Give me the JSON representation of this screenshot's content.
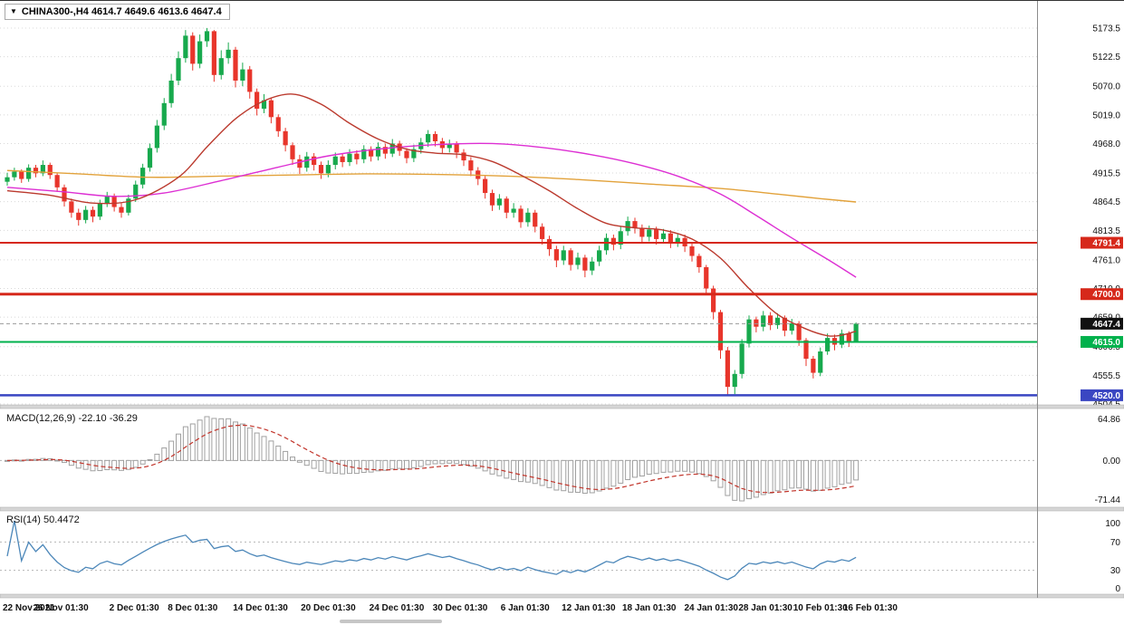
{
  "header": {
    "dropdown_icon": "▼",
    "title": "CHINA300-,H4 4614.7 4649.6 4613.6 4647.4"
  },
  "indicators": {
    "macd_label": "MACD(12,26,9) -22.10 -36.29",
    "rsi_label": "RSI(14) 50.4472"
  },
  "colors": {
    "bull": "#17a94d",
    "bear": "#e8352b",
    "grid": "#d8d8d8",
    "separator": "#d6d6d6",
    "axis_line": "#8c8c8c",
    "macd_bar": "#a0a0a0",
    "macd_signal": "#c2352b",
    "rsi_line": "#4c87b9",
    "current_badge": "#111111"
  },
  "chart_data": [
    {
      "type": "candlestick",
      "symbol": "CHINA300-",
      "timeframe": "H4",
      "ohlc_current": {
        "open": 4614.7,
        "high": 4649.6,
        "low": 4613.6,
        "close": 4647.4
      },
      "current_price": 4647.4,
      "y_ticks": [
        5173.5,
        5122.5,
        5070.0,
        5019.0,
        4968.0,
        4915.5,
        4864.5,
        4813.5,
        4761.0,
        4710.0,
        4659.0,
        4606.5,
        4555.5,
        4504.5
      ],
      "ylim": [
        4504.5,
        5173.5
      ],
      "grid": "horizontal-dotted",
      "x_labels": [
        {
          "text": "22 Nov 2021",
          "index": 0
        },
        {
          "text": "26 Nov 01:30",
          "index": 7.5
        },
        {
          "text": "2 Dec 01:30",
          "index": 17.8
        },
        {
          "text": "8 Dec 01:30",
          "index": 26
        },
        {
          "text": "14 Dec 01:30",
          "index": 35.5
        },
        {
          "text": "20 Dec 01:30",
          "index": 45
        },
        {
          "text": "24 Dec 01:30",
          "index": 54.6
        },
        {
          "text": "30 Dec 01:30",
          "index": 63.5
        },
        {
          "text": "6 Jan 01:30",
          "index": 72.6
        },
        {
          "text": "12 Jan 01:30",
          "index": 81.5
        },
        {
          "text": "18 Jan 01:30",
          "index": 90
        },
        {
          "text": "24 Jan 01:30",
          "index": 98.7
        },
        {
          "text": "28 Jan 01:30",
          "index": 106.3
        },
        {
          "text": "10 Feb 01:30",
          "index": 114
        },
        {
          "text": "16 Feb 01:30",
          "index": 121
        }
      ],
      "hlines": [
        {
          "value": 4791.4,
          "color": "#d6281a",
          "width": 2
        },
        {
          "value": 4700.0,
          "color": "#d6281a",
          "width": 3
        },
        {
          "value": 4615.0,
          "color": "#00b14c",
          "width": 2
        },
        {
          "value": 4520.0,
          "color": "#3a46c2",
          "width": 2.5
        }
      ],
      "moving_averages": [
        {
          "name": "slow-orange",
          "color": "#e2a23b",
          "points": [
            [
              0,
              4920
            ],
            [
              10,
              4914
            ],
            [
              20,
              4908
            ],
            [
              30,
              4910
            ],
            [
              40,
              4912
            ],
            [
              50,
              4914
            ],
            [
              60,
              4913
            ],
            [
              70,
              4910
            ],
            [
              80,
              4904
            ],
            [
              90,
              4896
            ],
            [
              100,
              4888
            ],
            [
              108,
              4878
            ],
            [
              114,
              4870
            ],
            [
              119,
              4864
            ]
          ]
        },
        {
          "name": "medium-magenta",
          "color": "#dd2fd3",
          "points": [
            [
              0,
              4890
            ],
            [
              8,
              4882
            ],
            [
              15,
              4874
            ],
            [
              22,
              4880
            ],
            [
              30,
              4902
            ],
            [
              38,
              4926
            ],
            [
              45,
              4946
            ],
            [
              52,
              4958
            ],
            [
              60,
              4966
            ],
            [
              68,
              4968
            ],
            [
              75,
              4961
            ],
            [
              82,
              4948
            ],
            [
              88,
              4932
            ],
            [
              94,
              4910
            ],
            [
              100,
              4878
            ],
            [
              105,
              4840
            ],
            [
              110,
              4800
            ],
            [
              115,
              4762
            ],
            [
              119,
              4730
            ]
          ]
        },
        {
          "name": "fast-red",
          "color": "#bb3a2e",
          "points": [
            [
              0,
              4884
            ],
            [
              6,
              4876
            ],
            [
              12,
              4862
            ],
            [
              18,
              4868
            ],
            [
              24,
              4908
            ],
            [
              28,
              4962
            ],
            [
              32,
              5012
            ],
            [
              36,
              5044
            ],
            [
              40,
              5056
            ],
            [
              44,
              5038
            ],
            [
              48,
              5004
            ],
            [
              52,
              4976
            ],
            [
              56,
              4958
            ],
            [
              60,
              4951
            ],
            [
              64,
              4948
            ],
            [
              68,
              4936
            ],
            [
              72,
              4912
            ],
            [
              76,
              4884
            ],
            [
              80,
              4852
            ],
            [
              84,
              4826
            ],
            [
              88,
              4818
            ],
            [
              92,
              4814
            ],
            [
              96,
              4798
            ],
            [
              100,
              4764
            ],
            [
              104,
              4710
            ],
            [
              108,
              4664
            ],
            [
              112,
              4638
            ],
            [
              115,
              4626
            ],
            [
              117,
              4627
            ],
            [
              119,
              4634
            ]
          ]
        }
      ],
      "candles": [
        [
          4900,
          4916,
          4893,
          4908
        ],
        [
          4908,
          4925,
          4902,
          4918
        ],
        [
          4918,
          4922,
          4898,
          4905
        ],
        [
          4905,
          4931,
          4900,
          4925
        ],
        [
          4925,
          4930,
          4908,
          4915
        ],
        [
          4915,
          4938,
          4910,
          4930
        ],
        [
          4930,
          4934,
          4905,
          4912
        ],
        [
          4912,
          4916,
          4882,
          4890
        ],
        [
          4890,
          4895,
          4856,
          4865
        ],
        [
          4865,
          4870,
          4836,
          4845
        ],
        [
          4845,
          4852,
          4822,
          4832
        ],
        [
          4832,
          4857,
          4826,
          4850
        ],
        [
          4850,
          4856,
          4828,
          4838
        ],
        [
          4838,
          4868,
          4832,
          4862
        ],
        [
          4862,
          4882,
          4855,
          4875
        ],
        [
          4875,
          4879,
          4847,
          4855
        ],
        [
          4855,
          4862,
          4836,
          4845
        ],
        [
          4845,
          4877,
          4840,
          4870
        ],
        [
          4870,
          4902,
          4864,
          4895
        ],
        [
          4895,
          4932,
          4888,
          4925
        ],
        [
          4925,
          4968,
          4918,
          4960
        ],
        [
          4960,
          5010,
          4952,
          5000
        ],
        [
          5000,
          5049,
          4992,
          5040
        ],
        [
          5040,
          5092,
          5032,
          5080
        ],
        [
          5080,
          5132,
          5072,
          5120
        ],
        [
          5120,
          5170,
          5112,
          5160
        ],
        [
          5160,
          5166,
          5098,
          5110
        ],
        [
          5110,
          5162,
          5102,
          5150
        ],
        [
          5150,
          5173.5,
          5140,
          5168
        ],
        [
          5168,
          5170,
          5078,
          5090
        ],
        [
          5090,
          5134,
          5082,
          5120
        ],
        [
          5120,
          5148,
          5110,
          5135
        ],
        [
          5135,
          5140,
          5068,
          5080
        ],
        [
          5080,
          5112,
          5070,
          5100
        ],
        [
          5100,
          5106,
          5048,
          5060
        ],
        [
          5060,
          5066,
          5018,
          5030
        ],
        [
          5030,
          5056,
          5022,
          5045
        ],
        [
          5045,
          5050,
          5004,
          5015
        ],
        [
          5015,
          5020,
          4980,
          4990
        ],
        [
          4990,
          4996,
          4954,
          4965
        ],
        [
          4965,
          4970,
          4930,
          4940
        ],
        [
          4940,
          4948,
          4914,
          4925
        ],
        [
          4925,
          4953,
          4918,
          4945
        ],
        [
          4945,
          4951,
          4920,
          4930
        ],
        [
          4930,
          4936,
          4905,
          4915
        ],
        [
          4915,
          4938,
          4908,
          4930
        ],
        [
          4930,
          4952,
          4922,
          4945
        ],
        [
          4945,
          4950,
          4926,
          4935
        ],
        [
          4935,
          4958,
          4928,
          4950
        ],
        [
          4950,
          4956,
          4931,
          4940
        ],
        [
          4940,
          4965,
          4933,
          4958
        ],
        [
          4958,
          4963,
          4936,
          4945
        ],
        [
          4945,
          4970,
          4938,
          4962
        ],
        [
          4962,
          4968,
          4941,
          4950
        ],
        [
          4950,
          4976,
          4944,
          4968
        ],
        [
          4968,
          4973,
          4946,
          4955
        ],
        [
          4955,
          4960,
          4933,
          4942
        ],
        [
          4942,
          4966,
          4935,
          4958
        ],
        [
          4958,
          4978,
          4950,
          4970
        ],
        [
          4970,
          4992,
          4962,
          4985
        ],
        [
          4985,
          4990,
          4963,
          4972
        ],
        [
          4972,
          4978,
          4950,
          4960
        ],
        [
          4960,
          4975,
          4952,
          4968
        ],
        [
          4968,
          4972,
          4942,
          4952
        ],
        [
          4952,
          4958,
          4928,
          4938
        ],
        [
          4938,
          4944,
          4910,
          4920
        ],
        [
          4920,
          4926,
          4894,
          4905
        ],
        [
          4905,
          4910,
          4870,
          4880
        ],
        [
          4880,
          4886,
          4848,
          4858
        ],
        [
          4858,
          4878,
          4850,
          4870
        ],
        [
          4870,
          4874,
          4835,
          4845
        ],
        [
          4845,
          4862,
          4836,
          4852
        ],
        [
          4852,
          4858,
          4818,
          4828
        ],
        [
          4828,
          4853,
          4820,
          4845
        ],
        [
          4845,
          4850,
          4810,
          4820
        ],
        [
          4820,
          4826,
          4788,
          4798
        ],
        [
          4798,
          4804,
          4768,
          4780
        ],
        [
          4780,
          4786,
          4748,
          4760
        ],
        [
          4760,
          4786,
          4752,
          4778
        ],
        [
          4778,
          4782,
          4742,
          4752
        ],
        [
          4752,
          4774,
          4744,
          4765
        ],
        [
          4765,
          4770,
          4730,
          4742
        ],
        [
          4742,
          4766,
          4734,
          4758
        ],
        [
          4758,
          4786,
          4750,
          4778
        ],
        [
          4778,
          4808,
          4770,
          4800
        ],
        [
          4800,
          4806,
          4778,
          4788
        ],
        [
          4788,
          4820,
          4780,
          4812
        ],
        [
          4812,
          4838,
          4804,
          4830
        ],
        [
          4830,
          4836,
          4808,
          4818
        ],
        [
          4818,
          4824,
          4792,
          4802
        ],
        [
          4802,
          4822,
          4794,
          4815
        ],
        [
          4815,
          4820,
          4788,
          4798
        ],
        [
          4798,
          4816,
          4790,
          4808
        ],
        [
          4808,
          4814,
          4782,
          4792
        ],
        [
          4792,
          4808,
          4784,
          4800
        ],
        [
          4800,
          4806,
          4775,
          4785
        ],
        [
          4785,
          4790,
          4758,
          4768
        ],
        [
          4768,
          4772,
          4738,
          4748
        ],
        [
          4748,
          4752,
          4698,
          4710
        ],
        [
          4710,
          4715,
          4655,
          4668
        ],
        [
          4668,
          4672,
          4585,
          4600
        ],
        [
          4600,
          4606,
          4520,
          4535
        ],
        [
          4535,
          4565,
          4522,
          4558
        ],
        [
          4558,
          4620,
          4550,
          4612
        ],
        [
          4612,
          4662,
          4605,
          4655
        ],
        [
          4655,
          4660,
          4632,
          4642
        ],
        [
          4642,
          4670,
          4634,
          4662
        ],
        [
          4662,
          4668,
          4636,
          4645
        ],
        [
          4645,
          4666,
          4638,
          4658
        ],
        [
          4658,
          4662,
          4625,
          4635
        ],
        [
          4635,
          4656,
          4628,
          4648
        ],
        [
          4648,
          4652,
          4608,
          4618
        ],
        [
          4618,
          4622,
          4572,
          4585
        ],
        [
          4585,
          4590,
          4550,
          4560
        ],
        [
          4560,
          4605,
          4554,
          4598
        ],
        [
          4598,
          4630,
          4592,
          4622
        ],
        [
          4622,
          4628,
          4600,
          4610
        ],
        [
          4610,
          4637,
          4604,
          4630
        ],
        [
          4630,
          4634,
          4606,
          4614
        ],
        [
          4614.7,
          4649.6,
          4613.6,
          4647.4
        ]
      ]
    },
    {
      "type": "macd-histogram",
      "label": "MACD(12,26,9)",
      "params": [
        12,
        26,
        9
      ],
      "values": {
        "macd": -22.1,
        "signal": -36.29
      },
      "y_ticks": [
        "64.86",
        "0.00",
        "-71.44"
      ],
      "zero_line": "dotted"
    },
    {
      "type": "rsi-line",
      "label": "RSI(14)",
      "period": 14,
      "value": 50.4472,
      "y_ticks": [
        100,
        70,
        30,
        0
      ],
      "levels": [
        70,
        30
      ]
    }
  ]
}
